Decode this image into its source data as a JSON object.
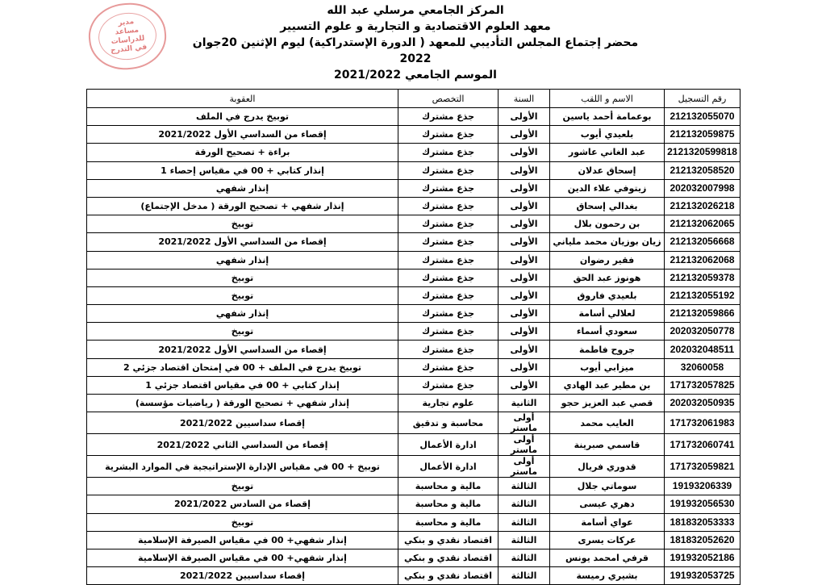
{
  "header": {
    "line1": "المركز الجامعي مرسلي عبد الله",
    "line2": "معهد العلوم الاقتصادية و التجارية و علوم التسيير",
    "line3": "محضر إجتماع المجلس التأديبي للمعهد ( الدورة الإستدراكية) ليوم الإثنين 20جوان 2022",
    "line4": "الموسم الجامعي 2021/2022"
  },
  "stamp": {
    "text": "مدير مساعد للدراسات في التدرج",
    "color": "#e07a7a"
  },
  "table": {
    "columns": [
      "رقم التسجيل",
      "الاسم و اللقب",
      "السنة",
      "التخصص",
      "العقوبة"
    ],
    "rows": [
      [
        "212132055070",
        "بوعمامة أحمد ياسين",
        "الأولى",
        "جذع مشترك",
        "توبيخ يدرج في الملف"
      ],
      [
        "212132059875",
        "بلعيدي أيوب",
        "الأولى",
        "جذع مشترك",
        "إقصاء من السداسي الأول 2021/2022"
      ],
      [
        "2121320599818",
        "عبد الغاني عاشور",
        "الأولى",
        "جذع مشترك",
        "براءة + تصحيح الورقة"
      ],
      [
        "212132058520",
        "إسحاق عدلان",
        "الأولى",
        "جذع مشترك",
        "إنذار كتابي + 00 في مقياس إحصاء 1"
      ],
      [
        "202032007998",
        "زيتوفي علاء الدين",
        "الأولى",
        "جذع مشترك",
        "إنذار شفهي"
      ],
      [
        "212132026218",
        "بغدالي إسحاق",
        "الأولى",
        "جذع مشترك",
        "إنذار شفهي + تصحيح الورقة ( مدخل الإجتماع)"
      ],
      [
        "212132062065",
        "بن رحمون بلال",
        "الأولى",
        "جذع مشترك",
        "توبيخ"
      ],
      [
        "212132056668",
        "زيان بوزيان محمد ملياني",
        "الأولى",
        "جذع مشترك",
        "إقصاء من السداسي الأول 2021/2022"
      ],
      [
        "212132062068",
        "فقير رضوان",
        "الأولى",
        "جذع مشترك",
        "إنذار شفهي"
      ],
      [
        "212132059378",
        "هونوز عبد الحق",
        "الأولى",
        "جذع مشترك",
        "توبيخ"
      ],
      [
        "212132055192",
        "بلعيدي فاروق",
        "الأولى",
        "جذع مشترك",
        "توبيخ"
      ],
      [
        "212132059866",
        "لعلالي أسامة",
        "الأولى",
        "جذع مشترك",
        "إنذار شفهي"
      ],
      [
        "202032050778",
        "سعودي أسماء",
        "الأولى",
        "جذع مشترك",
        "توبيخ"
      ],
      [
        "202032048511",
        "جروح فاطمة",
        "الأولى",
        "جذع مشترك",
        "إقصاء من السداسي الأول 2021/2022"
      ],
      [
        "32060058",
        "ميزابي أيوب",
        "الأولى",
        "جذع مشترك",
        "توبيخ يدرج في الملف + 00 في إمتحان اقتصاد جزئي 2"
      ],
      [
        "171732057825",
        "بن مطير عبد الهادي",
        "الأولى",
        "جذع مشترك",
        "إنذار كتابي + 00 في مقياس اقتصاد جزئي 1"
      ],
      [
        "202032050935",
        "قصي عبد العزيز حجو",
        "الثانية",
        "علوم تجارية",
        "إنذار شفهي + تصحيح الورقة ( رياضيات مؤسسة)"
      ],
      [
        "171732061983",
        "العايب محمد",
        "أولى ماستر",
        "محاسبة و تدقيق",
        "إقصاء سداسيين 2021/2022"
      ],
      [
        "171732060741",
        "قاسمي صبرينة",
        "أولى ماستر",
        "ادارة الأعمال",
        "إقصاء من السداسي الثاني 2021/2022"
      ],
      [
        "171732059821",
        "قدوري فريال",
        "أولى ماستر",
        "ادارة الأعمال",
        "توبيخ + 00 في مقياس الإدارة الإستراتيجية في الموارد البشرية"
      ],
      [
        "19193206339",
        "سوماتي جلال",
        "الثالثة",
        "مالية و محاسبة",
        "توبيخ"
      ],
      [
        "191932056530",
        "دهري عيسى",
        "الثالثة",
        "مالية و محاسبة",
        "إقصاء من السادس 2021/2022"
      ],
      [
        "181832053333",
        "عواي أسامة",
        "الثالثة",
        "مالية و محاسبة",
        "توبيخ"
      ],
      [
        "181832052620",
        "عركات يسرى",
        "الثالثة",
        "اقتصاد نقدي و بنكي",
        "إنذار شفهي+ 00 في مقياس  الصيرفة الإسلامية"
      ],
      [
        "191932052186",
        "قرفي امحمد يونس",
        "الثالثة",
        "اقتصاد نقدي و بنكي",
        "إنذار شفهي+ 00 في مقياس  الصيرفة الإسلامية"
      ],
      [
        "191932053725",
        "بشيري رميسة",
        "الثالثة",
        "اقتصاد نقدي و بنكي",
        "إقصاء سداسيين 2021/2022"
      ]
    ]
  }
}
